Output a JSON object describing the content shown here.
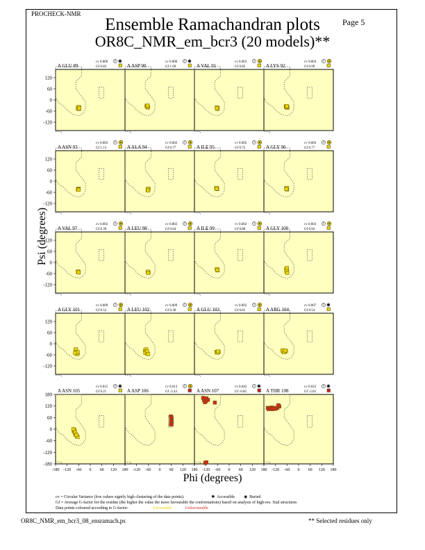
{
  "header": {
    "program": "PROCHECK-NMR",
    "page": "Page  5",
    "title": "Ensemble Ramachandran plots",
    "subtitle": "OR8C_NMR_em_bcr3 (20 models)**"
  },
  "axes": {
    "xlabel": "Phi (degrees)",
    "ylabel": "Psi (degrees)",
    "xticks": [
      "-180",
      "-120",
      "-60",
      "0",
      "60",
      "120",
      "180"
    ],
    "yticks": [
      "120",
      "60",
      "0",
      "-60",
      "-120"
    ],
    "yticks_bottom_row": [
      "180",
      "120",
      "60",
      "0",
      "-60",
      "-120",
      "-180"
    ]
  },
  "legend": {
    "line1": "cv = Circular Variance (low values signify high clustering of the data points).",
    "accessible": "Accessible",
    "buried": "Buried",
    "line2": "Gf = Average G-factor for the residue (the higher the value the more favourable the conformations) based on analysis of high-res. Xtal structures",
    "line3": "Data points coloured according to G-factor:",
    "favourable": "Favourable",
    "unfavourable": "Unfavourable"
  },
  "footer": {
    "left": "OR8C_NMR_em_bcr3_08_ensramach.ps",
    "right": "** Selected residues only"
  },
  "colors": {
    "panel_bg": "#ffffc0",
    "favourable": "#e8d400",
    "unfavourable": "#cc2a1f",
    "region_border": "#555555"
  },
  "chart_data": {
    "type": "scatter",
    "xlim": [
      -180,
      180
    ],
    "ylim": [
      -180,
      180
    ],
    "panels": [
      {
        "label": "A GLU 89",
        "cv": "cv 0.006",
        "gf": "Gf 0.82",
        "acc": "accessible",
        "gfc": "fav",
        "pts": [
          [
            -62,
            -42
          ],
          [
            -60,
            -48
          ],
          [
            -58,
            -40
          ],
          [
            -64,
            -45
          ],
          [
            -61,
            -38
          ],
          [
            -57,
            -46
          ]
        ]
      },
      {
        "label": "A ASP 90",
        "cv": "cv 0.006",
        "gf": "Gf 1.09",
        "acc": "accessible",
        "gfc": "fav",
        "pts": [
          [
            -65,
            -35
          ],
          [
            -62,
            -38
          ],
          [
            -68,
            -32
          ],
          [
            -60,
            -40
          ],
          [
            -66,
            -36
          ],
          [
            -63,
            -30
          ]
        ]
      },
      {
        "label": "A VAL 91",
        "cv": "cv 0.003",
        "gf": "Gf 0.85",
        "acc": "buried",
        "gfc": "fav",
        "pts": [
          [
            -62,
            -42
          ],
          [
            -60,
            -46
          ],
          [
            -64,
            -40
          ],
          [
            -61,
            -48
          ],
          [
            -63,
            -44
          ]
        ]
      },
      {
        "label": "A LYS 92",
        "cv": "cv 0.004",
        "gf": "Gf 0.99",
        "acc": "buried",
        "gfc": "fav",
        "pts": [
          [
            -62,
            -36
          ],
          [
            -58,
            -40
          ],
          [
            -66,
            -34
          ],
          [
            -60,
            -42
          ],
          [
            -64,
            -38
          ],
          [
            -61,
            -33
          ]
        ]
      },
      {
        "label": "A ASN 93",
        "cv": "cv 0.002",
        "gf": "Gf 1.13",
        "acc": "buried",
        "gfc": "fav",
        "pts": [
          [
            -62,
            -42
          ],
          [
            -60,
            -40
          ],
          [
            -64,
            -44
          ],
          [
            -61,
            -46
          ]
        ]
      },
      {
        "label": "A ALA 94",
        "cv": "cv 0.002",
        "gf": "Gf 0.77",
        "acc": "buried",
        "gfc": "fav",
        "pts": [
          [
            -60,
            -44
          ],
          [
            -62,
            -48
          ],
          [
            -58,
            -42
          ],
          [
            -61,
            -40
          ],
          [
            -60,
            -50
          ]
        ]
      },
      {
        "label": "A ILE 95",
        "cv": "cv 0.002",
        "gf": "Gf 0.72",
        "acc": "buried",
        "gfc": "fav",
        "pts": [
          [
            -65,
            -38
          ],
          [
            -62,
            -42
          ],
          [
            -67,
            -36
          ],
          [
            -64,
            -40
          ]
        ]
      },
      {
        "label": "A GLY 96",
        "cv": "cv 0.003",
        "gf": "Gf 0.77",
        "acc": "buried",
        "gfc": "fav",
        "pts": [
          [
            -62,
            -40
          ],
          [
            -60,
            -44
          ],
          [
            -64,
            -38
          ],
          [
            -61,
            -36
          ],
          [
            -63,
            -42
          ]
        ]
      },
      {
        "label": "A VAL 97",
        "cv": "cv 0.002",
        "gf": "Gf 0.39",
        "acc": "buried",
        "gfc": "fav",
        "pts": [
          [
            -62,
            -50
          ],
          [
            -60,
            -52
          ],
          [
            -64,
            -48
          ],
          [
            -61,
            -54
          ]
        ]
      },
      {
        "label": "A LEU 98",
        "cv": "cv 0.002",
        "gf": "Gf 0.64",
        "acc": "buried",
        "gfc": "fav",
        "pts": [
          [
            -60,
            -52
          ],
          [
            -58,
            -54
          ],
          [
            -62,
            -50
          ],
          [
            -60,
            -56
          ]
        ]
      },
      {
        "label": "A ILE 99",
        "cv": "cv 0.002",
        "gf": "Gf 0.88",
        "acc": "buried",
        "gfc": "fav",
        "pts": [
          [
            -62,
            -38
          ],
          [
            -60,
            -42
          ],
          [
            -64,
            -36
          ],
          [
            -61,
            -40
          ]
        ]
      },
      {
        "label": "A GLY 100",
        "cv": "cv 0.003",
        "gf": "Gf 0.94",
        "acc": "buried",
        "gfc": "fav",
        "pts": [
          [
            -62,
            -42
          ],
          [
            -60,
            -50
          ],
          [
            -64,
            -36
          ],
          [
            -61,
            -30
          ],
          [
            -63,
            -46
          ],
          [
            -59,
            -56
          ]
        ]
      },
      {
        "label": "A GLY 101",
        "cv": "cv 0.009",
        "gf": "Gf 0.52",
        "acc": "buried",
        "gfc": "fav",
        "pts": [
          [
            -72,
            -42
          ],
          [
            -68,
            -48
          ],
          [
            -76,
            -38
          ],
          [
            -65,
            -52
          ],
          [
            -70,
            -56
          ],
          [
            -74,
            -30
          ],
          [
            -66,
            -44
          ],
          [
            -78,
            -50
          ]
        ]
      },
      {
        "label": "A LEU 102",
        "cv": "cv 0.009",
        "gf": "Gf 0.38",
        "acc": "buried",
        "gfc": "fav",
        "pts": [
          [
            -72,
            -40
          ],
          [
            -68,
            -46
          ],
          [
            -76,
            -36
          ],
          [
            -65,
            -52
          ],
          [
            -70,
            -30
          ],
          [
            -74,
            -50
          ],
          [
            -66,
            -42
          ],
          [
            -60,
            -56
          ]
        ]
      },
      {
        "label": "A GLU 103",
        "cv": "cv 0.002",
        "gf": "Gf 0.81",
        "acc": "buried",
        "gfc": "fav",
        "pts": [
          [
            -65,
            -44
          ],
          [
            -60,
            -46
          ],
          [
            -55,
            -44
          ],
          [
            -62,
            -48
          ],
          [
            -58,
            -42
          ]
        ]
      },
      {
        "label": "A ARG 104",
        "cv": "cv 0.007",
        "gf": "Gf 0.54",
        "acc": "accessible",
        "gfc": "fav",
        "pts": [
          [
            -80,
            -40
          ],
          [
            -72,
            -42
          ],
          [
            -66,
            -40
          ],
          [
            -84,
            -36
          ],
          [
            -76,
            -46
          ],
          [
            -70,
            -36
          ]
        ]
      },
      {
        "label": "A ASN 105",
        "cv": "cv 0.015",
        "gf": "Gf 0.21",
        "acc": "accessible",
        "gfc": "fav",
        "pts": [
          [
            -85,
            -10
          ],
          [
            -80,
            -20
          ],
          [
            -76,
            -28
          ],
          [
            -70,
            -36
          ],
          [
            -82,
            -4
          ],
          [
            -88,
            0
          ],
          [
            -66,
            -40
          ],
          [
            -78,
            -16
          ],
          [
            -72,
            -30
          ]
        ]
      },
      {
        "label": "A ASP 106",
        "cv": "cv 0.013",
        "gf": "Gf -2.43",
        "acc": "buried",
        "gfc": "unfav",
        "pts": [
          [
            60,
            60
          ],
          [
            62,
            50
          ],
          [
            58,
            66
          ],
          [
            60,
            40
          ],
          [
            62,
            30
          ],
          [
            58,
            24
          ],
          [
            61,
            56
          ],
          [
            59,
            44
          ]
        ]
      },
      {
        "label": "A ASN 107",
        "cv": "cv 0.043",
        "gf": "Gf -0.82",
        "acc": "accessible",
        "gfc": "unfav",
        "pts": [
          [
            -130,
            150
          ],
          [
            -124,
            155
          ],
          [
            -118,
            160
          ],
          [
            -135,
            162
          ],
          [
            -120,
            145
          ],
          [
            -110,
            152
          ],
          [
            -126,
            140
          ],
          [
            -74,
            138
          ],
          [
            -124,
            -175
          ],
          [
            -118,
            -172
          ]
        ]
      },
      {
        "label": "A THR 108",
        "cv": "cv 0.022",
        "gf": "Gf -2.03",
        "acc": "accessible",
        "gfc": "unfav",
        "pts": [
          [
            -160,
            110
          ],
          [
            -150,
            108
          ],
          [
            -140,
            112
          ],
          [
            -130,
            110
          ],
          [
            -120,
            106
          ],
          [
            -110,
            110
          ],
          [
            -155,
            104
          ],
          [
            -135,
            104
          ],
          [
            -100,
            118
          ],
          [
            -105,
            124
          ]
        ]
      }
    ]
  }
}
